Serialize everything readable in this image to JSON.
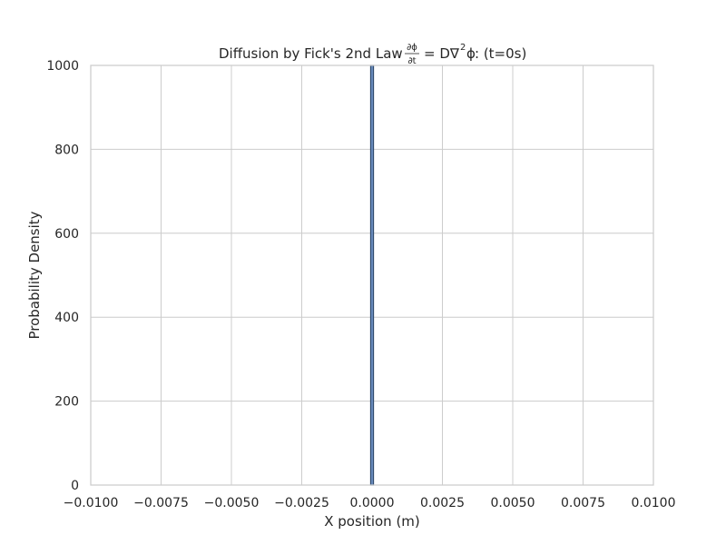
{
  "chart_data": {
    "type": "bar",
    "title": {
      "prefix": "Diffusion by Fick's 2nd Law ",
      "numerator": "∂ϕ",
      "denominator": "∂t",
      "equation": "= D∇",
      "exponent": "2",
      "variable": "ϕ",
      "suffix": ": (t=0s)"
    },
    "xlabel": "X position (m)",
    "ylabel": "Probability Density",
    "xlim": [
      -0.01,
      0.01
    ],
    "ylim": [
      0,
      1000
    ],
    "x_ticks": [
      -0.01,
      -0.0075,
      -0.005,
      -0.0025,
      0.0,
      0.0025,
      0.005,
      0.0075,
      0.01
    ],
    "x_tick_labels": [
      "−0.0100",
      "−0.0075",
      "−0.0050",
      "−0.0025",
      "0.0000",
      "0.0025",
      "0.0050",
      "0.0075",
      "0.0100"
    ],
    "y_ticks": [
      0,
      200,
      400,
      600,
      800,
      1000
    ],
    "y_tick_labels": [
      "0",
      "200",
      "400",
      "600",
      "800",
      "1000"
    ],
    "bins": [
      {
        "x0": -5e-05,
        "x1": 5e-05,
        "value": 1000
      }
    ],
    "grid": true,
    "colors": {
      "bar_fill": "#6c8ebf",
      "bar_edge": "#2f4a6e",
      "grid": "#cccccc",
      "spine": "#cccccc"
    }
  }
}
